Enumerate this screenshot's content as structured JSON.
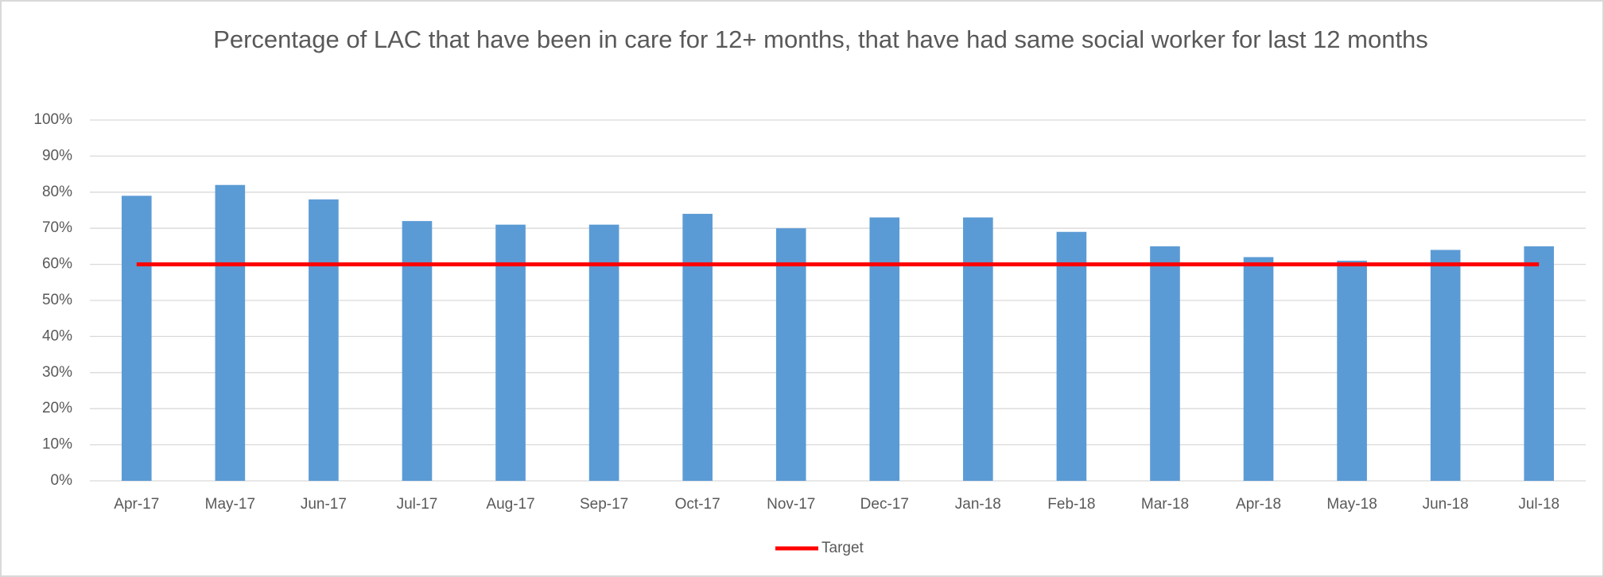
{
  "chart_data": {
    "type": "bar",
    "title": "Percentage of LAC that have been in care for 12+ months, that have had same social worker for last 12 months",
    "categories": [
      "Apr-17",
      "May-17",
      "Jun-17",
      "Jul-17",
      "Aug-17",
      "Sep-17",
      "Oct-17",
      "Nov-17",
      "Dec-17",
      "Jan-18",
      "Feb-18",
      "Mar-18",
      "Apr-18",
      "May-18",
      "Jun-18",
      "Jul-18"
    ],
    "series": [
      {
        "color": "#5b9bd5",
        "values": [
          79,
          82,
          78,
          72,
          71,
          71,
          74,
          70,
          73,
          73,
          69,
          65,
          62,
          61,
          64,
          65
        ]
      },
      {
        "name": "Target",
        "type": "line",
        "color": "#ff0000",
        "values": [
          60,
          60,
          60,
          60,
          60,
          60,
          60,
          60,
          60,
          60,
          60,
          60,
          60,
          60,
          60,
          60
        ]
      }
    ],
    "ylim": [
      0,
      100
    ],
    "yticks": [
      {
        "value": 0,
        "label": "0%"
      },
      {
        "value": 10,
        "label": "10%"
      },
      {
        "value": 20,
        "label": "20%"
      },
      {
        "value": 30,
        "label": "30%"
      },
      {
        "value": 40,
        "label": "40%"
      },
      {
        "value": 50,
        "label": "50%"
      },
      {
        "value": 60,
        "label": "60%"
      },
      {
        "value": 70,
        "label": "70%"
      },
      {
        "value": 80,
        "label": "80%"
      },
      {
        "value": 90,
        "label": "90%"
      },
      {
        "value": 100,
        "label": "100%"
      }
    ],
    "grid": true,
    "legend": "bottom"
  }
}
